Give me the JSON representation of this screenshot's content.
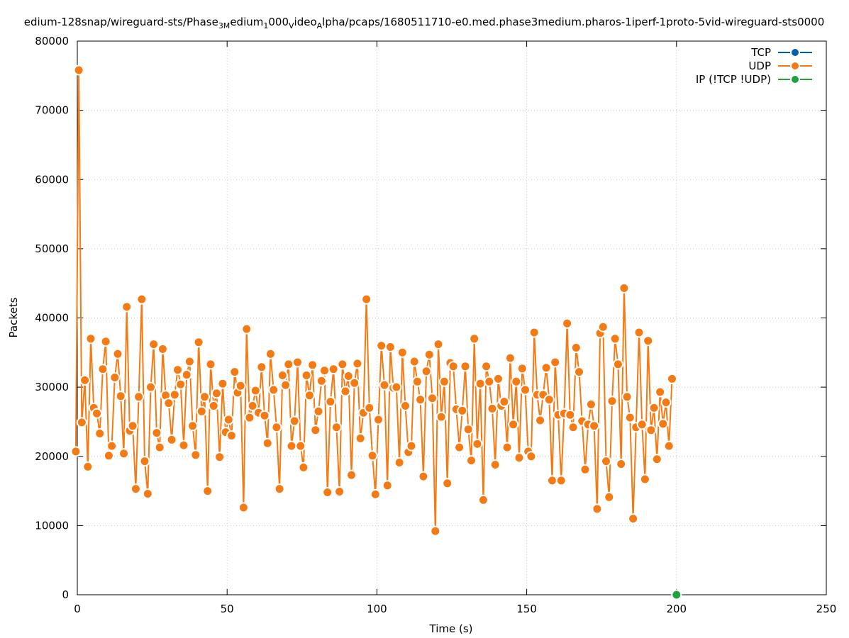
{
  "chart_data": {
    "type": "line",
    "title_parts": [
      {
        "t": "edium-128snap/wireguard-sts/Phase",
        "sub": false
      },
      {
        "t": "3M",
        "sub": true
      },
      {
        "t": "edium",
        "sub": false
      },
      {
        "t": "1",
        "sub": true
      },
      {
        "t": "000",
        "sub": false
      },
      {
        "t": "V",
        "sub": true
      },
      {
        "t": "ideo",
        "sub": false
      },
      {
        "t": "A",
        "sub": true
      },
      {
        "t": "lpha/pcaps/1680511710-e0.med.phase3medium.pharos-1iperf-1proto-5vid-wireguard-sts0000",
        "sub": false
      }
    ],
    "xlabel": "Time (s)",
    "ylabel": "Packets",
    "xlim": [
      0,
      250
    ],
    "ylim": [
      0,
      80000
    ],
    "xticks": [
      0,
      50,
      100,
      150,
      200,
      250
    ],
    "yticks": [
      0,
      10000,
      20000,
      30000,
      40000,
      50000,
      60000,
      70000,
      80000
    ],
    "grid": true,
    "legend_position": "top-right",
    "series": [
      {
        "name": "TCP",
        "color": "#0060ad",
        "x": [],
        "y": []
      },
      {
        "name": "UDP",
        "color": "#f47a14",
        "x_start": -0.5,
        "x_step": 1,
        "y": [
          20700,
          75800,
          24900,
          31000,
          18500,
          37000,
          27000,
          26200,
          23300,
          32600,
          36600,
          20100,
          21500,
          31400,
          34800,
          28700,
          20400,
          41600,
          23700,
          24400,
          15300,
          28600,
          42700,
          19300,
          14600,
          30000,
          36200,
          23400,
          21300,
          35500,
          28800,
          27700,
          22400,
          28900,
          32500,
          30400,
          21600,
          31800,
          33700,
          24400,
          20200,
          36500,
          26500,
          28600,
          15000,
          33300,
          27300,
          29100,
          19900,
          30500,
          23500,
          25300,
          23000,
          32200,
          29200,
          30200,
          12600,
          38400,
          25600,
          27300,
          29500,
          26300,
          32900,
          25900,
          21900,
          34800,
          29600,
          24200,
          15300,
          31700,
          30300,
          33300,
          21500,
          25100,
          33600,
          21500,
          18400,
          31700,
          28800,
          33200,
          23800,
          26500,
          30900,
          32400,
          14800,
          27900,
          32600,
          24200,
          14900,
          33300,
          29400,
          31600,
          17300,
          30600,
          33400,
          22600,
          26300,
          42700,
          27000,
          20100,
          14500,
          25300,
          36000,
          30300,
          15800,
          35800,
          29900,
          30000,
          19100,
          35000,
          27300,
          20600,
          21500,
          33700,
          30800,
          28200,
          17100,
          32300,
          34700,
          28400,
          9200,
          36200,
          25700,
          30800,
          16100,
          33500,
          33000,
          26800,
          21300,
          26600,
          33000,
          23900,
          19400,
          37000,
          21800,
          30500,
          13700,
          33000,
          30800,
          26900,
          18800,
          31200,
          27300,
          27900,
          21300,
          34200,
          24600,
          30800,
          19800,
          32700,
          29600,
          20700,
          20000,
          37900,
          28900,
          25200,
          28900,
          32800,
          28200,
          16500,
          33600,
          26000,
          16500,
          26200,
          39200,
          26000,
          24200,
          35700,
          32200,
          25100,
          18100,
          24600,
          27500,
          24400,
          12400,
          37800,
          38700,
          19300,
          14100,
          28000,
          37000,
          33300,
          18900,
          44300,
          28600,
          25600,
          11000,
          24200,
          37900,
          24600,
          16700,
          36700,
          23800,
          27000,
          19600,
          29300,
          24700,
          27800,
          21500,
          31200
        ]
      },
      {
        "name": "IP (!TCP  !UDP)",
        "color": "#20a040",
        "x": [
          200
        ],
        "y": [
          0
        ]
      }
    ]
  }
}
